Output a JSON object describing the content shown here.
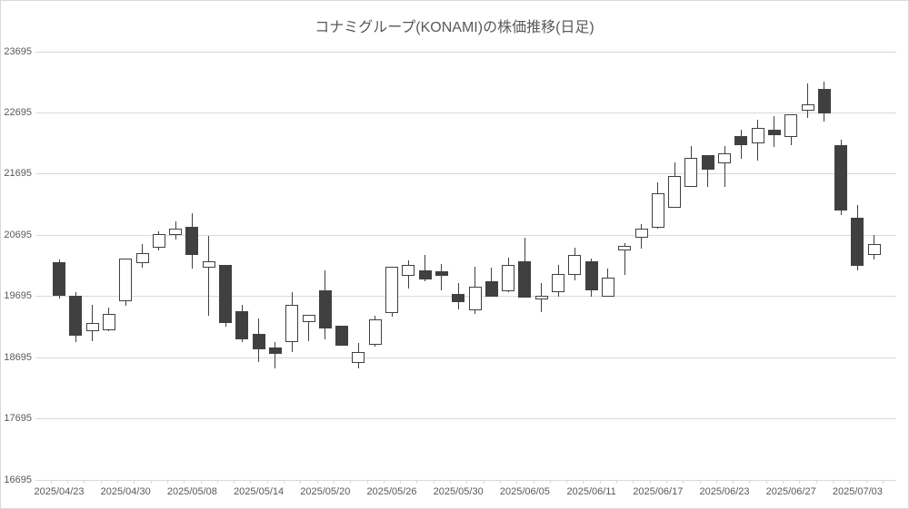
{
  "chart_data": {
    "type": "candlestick",
    "title": "コナミグループ(KONAMI)の株価推移(日足)",
    "grid": true,
    "y_axis": {
      "min": 16695,
      "max": 23695,
      "step": 1000,
      "ticks": [
        23695,
        22695,
        21695,
        20695,
        19695,
        18695,
        17695,
        16695
      ]
    },
    "x_axis": {
      "label_every": 4,
      "labels": [
        "2025/04/23",
        "2025/04/30",
        "2025/05/08",
        "2025/05/14",
        "2025/05/20",
        "2025/05/26",
        "2025/05/30",
        "2025/06/05",
        "2025/06/11",
        "2025/06/17",
        "2025/06/23",
        "2025/06/27",
        "2025/07/03"
      ]
    },
    "colors": {
      "up_fill": "#FFFFFF",
      "up_border": "#404040",
      "down_fill": "#404040",
      "wick": "#404040",
      "grid": "#D9D9D9",
      "text": "#595959"
    },
    "candles": [
      {
        "date": "2025/04/23",
        "open": 20260,
        "high": 20295,
        "low": 19665,
        "close": 19700
      },
      {
        "date": "2025/04/24",
        "open": 19710,
        "high": 19765,
        "low": 18950,
        "close": 19060
      },
      {
        "date": "2025/04/25",
        "open": 19130,
        "high": 19560,
        "low": 18960,
        "close": 19255
      },
      {
        "date": "2025/04/28",
        "open": 19140,
        "high": 19515,
        "low": 19130,
        "close": 19405
      },
      {
        "date": "2025/04/30",
        "open": 19615,
        "high": 20320,
        "low": 19535,
        "close": 20320
      },
      {
        "date": "2025/05/01",
        "open": 20245,
        "high": 20555,
        "low": 20170,
        "close": 20405
      },
      {
        "date": "2025/05/02",
        "open": 20490,
        "high": 20760,
        "low": 20440,
        "close": 20715
      },
      {
        "date": "2025/05/07",
        "open": 20705,
        "high": 20920,
        "low": 20625,
        "close": 20805
      },
      {
        "date": "2025/05/08",
        "open": 20840,
        "high": 21050,
        "low": 20155,
        "close": 20380
      },
      {
        "date": "2025/05/09",
        "open": 20170,
        "high": 20680,
        "low": 19380,
        "close": 20270
      },
      {
        "date": "2025/05/12",
        "open": 20205,
        "high": 20205,
        "low": 19200,
        "close": 19260
      },
      {
        "date": "2025/05/13",
        "open": 19455,
        "high": 19555,
        "low": 18950,
        "close": 19000
      },
      {
        "date": "2025/05/14",
        "open": 19080,
        "high": 19330,
        "low": 18630,
        "close": 18830
      },
      {
        "date": "2025/05/15",
        "open": 18855,
        "high": 18955,
        "low": 18520,
        "close": 18760
      },
      {
        "date": "2025/05/16",
        "open": 18955,
        "high": 19770,
        "low": 18790,
        "close": 19560
      },
      {
        "date": "2025/05/19",
        "open": 19275,
        "high": 19400,
        "low": 18965,
        "close": 19400
      },
      {
        "date": "2025/05/20",
        "open": 19795,
        "high": 20115,
        "low": 19000,
        "close": 19175
      },
      {
        "date": "2025/05/21",
        "open": 19215,
        "high": 19215,
        "low": 18890,
        "close": 18890
      },
      {
        "date": "2025/05/22",
        "open": 18610,
        "high": 18940,
        "low": 18525,
        "close": 18780
      },
      {
        "date": "2025/05/23",
        "open": 18905,
        "high": 19385,
        "low": 18870,
        "close": 19315
      },
      {
        "date": "2025/05/26",
        "open": 19430,
        "high": 20175,
        "low": 19360,
        "close": 20175
      },
      {
        "date": "2025/05/27",
        "open": 20030,
        "high": 20290,
        "low": 19830,
        "close": 20210
      },
      {
        "date": "2025/05/28",
        "open": 20120,
        "high": 20370,
        "low": 19950,
        "close": 19965
      },
      {
        "date": "2025/05/29",
        "open": 20105,
        "high": 20230,
        "low": 19800,
        "close": 20030
      },
      {
        "date": "2025/05/30",
        "open": 19735,
        "high": 19910,
        "low": 19490,
        "close": 19600
      },
      {
        "date": "2025/06/02",
        "open": 19465,
        "high": 20180,
        "low": 19415,
        "close": 19850
      },
      {
        "date": "2025/06/03",
        "open": 19950,
        "high": 20170,
        "low": 19690,
        "close": 19695
      },
      {
        "date": "2025/06/04",
        "open": 19785,
        "high": 20330,
        "low": 19760,
        "close": 20205
      },
      {
        "date": "2025/06/05",
        "open": 20275,
        "high": 20660,
        "low": 19675,
        "close": 19675
      },
      {
        "date": "2025/06/06",
        "open": 19640,
        "high": 19920,
        "low": 19440,
        "close": 19710
      },
      {
        "date": "2025/06/09",
        "open": 19765,
        "high": 20210,
        "low": 19690,
        "close": 20060
      },
      {
        "date": "2025/06/10",
        "open": 20050,
        "high": 20485,
        "low": 19955,
        "close": 20370
      },
      {
        "date": "2025/06/11",
        "open": 20275,
        "high": 20310,
        "low": 19690,
        "close": 19795
      },
      {
        "date": "2025/06/12",
        "open": 19690,
        "high": 20155,
        "low": 19690,
        "close": 20005
      },
      {
        "date": "2025/06/13",
        "open": 20450,
        "high": 20570,
        "low": 20050,
        "close": 20520
      },
      {
        "date": "2025/06/16",
        "open": 20660,
        "high": 20880,
        "low": 20480,
        "close": 20800
      },
      {
        "date": "2025/06/17",
        "open": 20820,
        "high": 21555,
        "low": 20800,
        "close": 21385
      },
      {
        "date": "2025/06/18",
        "open": 21150,
        "high": 21890,
        "low": 21150,
        "close": 21670
      },
      {
        "date": "2025/06/19",
        "open": 21480,
        "high": 22160,
        "low": 21480,
        "close": 21965
      },
      {
        "date": "2025/06/20",
        "open": 22010,
        "high": 22010,
        "low": 21480,
        "close": 21765
      },
      {
        "date": "2025/06/23",
        "open": 21865,
        "high": 22150,
        "low": 21480,
        "close": 22035
      },
      {
        "date": "2025/06/24",
        "open": 22310,
        "high": 22420,
        "low": 21940,
        "close": 22160
      },
      {
        "date": "2025/06/25",
        "open": 22195,
        "high": 22580,
        "low": 21915,
        "close": 22445
      },
      {
        "date": "2025/06/26",
        "open": 22420,
        "high": 22640,
        "low": 22145,
        "close": 22335
      },
      {
        "date": "2025/06/27",
        "open": 22295,
        "high": 22665,
        "low": 22160,
        "close": 22665
      },
      {
        "date": "2025/06/30",
        "open": 22730,
        "high": 23175,
        "low": 22605,
        "close": 22830
      },
      {
        "date": "2025/07/01",
        "open": 23090,
        "high": 23210,
        "low": 22555,
        "close": 22680
      },
      {
        "date": "2025/07/02",
        "open": 22170,
        "high": 22250,
        "low": 21025,
        "close": 21095
      },
      {
        "date": "2025/07/03",
        "open": 20985,
        "high": 21195,
        "low": 20125,
        "close": 20190
      },
      {
        "date": "2025/07/04",
        "open": 20380,
        "high": 20700,
        "low": 20305,
        "close": 20555
      }
    ]
  }
}
